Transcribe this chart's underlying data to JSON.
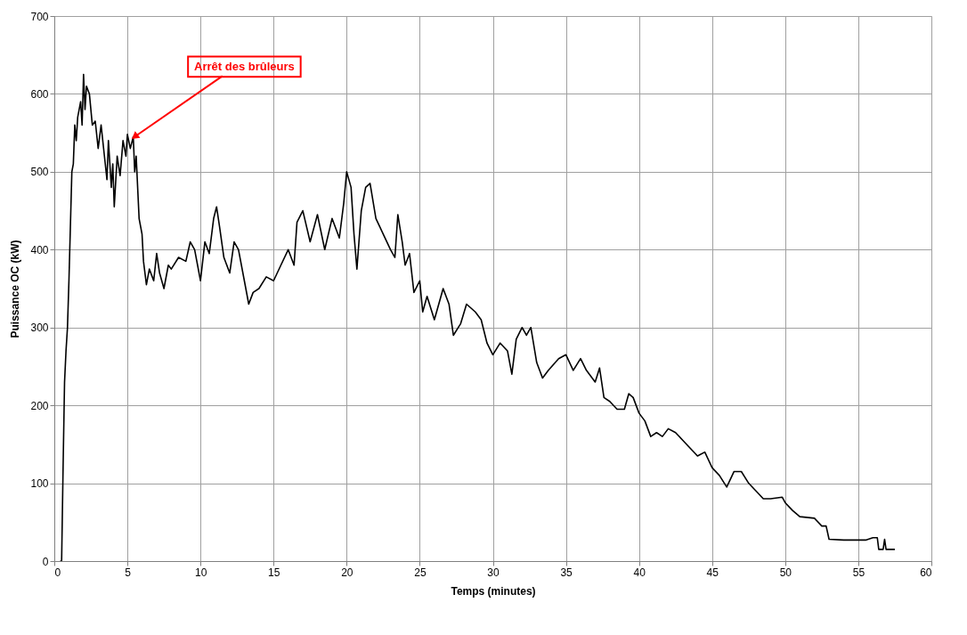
{
  "chart_data": {
    "type": "line",
    "xlabel": "Temps (minutes)",
    "ylabel": "Puissance OC (kW)",
    "xlim": [
      0,
      60
    ],
    "xticks": [
      0,
      5,
      10,
      15,
      20,
      25,
      30,
      35,
      40,
      45,
      50,
      55,
      60
    ],
    "ylim": [
      0,
      700
    ],
    "yticks": [
      0,
      100,
      200,
      300,
      400,
      500,
      600,
      700
    ],
    "grid": true,
    "marker": "none",
    "line_style": "solid",
    "annotations": [
      {
        "text": "Arrêt des brûleurs",
        "x": 5.5,
        "y": 545
      }
    ],
    "series": [
      {
        "color": "#000000",
        "x": [
          0.4,
          0.5,
          0.6,
          0.7,
          0.8,
          0.9,
          1.0,
          1.1,
          1.2,
          1.3,
          1.4,
          1.5,
          1.6,
          1.8,
          1.9,
          2.0,
          2.1,
          2.2,
          2.4,
          2.6,
          2.8,
          3.0,
          3.2,
          3.4,
          3.6,
          3.7,
          3.9,
          4.0,
          4.1,
          4.3,
          4.5,
          4.7,
          4.9,
          5.0,
          5.2,
          5.4,
          5.5,
          5.6,
          5.8,
          6.0,
          6.1,
          6.3,
          6.5,
          6.8,
          7.0,
          7.2,
          7.5,
          7.8,
          8.0,
          8.5,
          9.0,
          9.3,
          9.6,
          10.0,
          10.3,
          10.6,
          10.9,
          11.1,
          11.3,
          11.6,
          12.0,
          12.3,
          12.6,
          13.0,
          13.3,
          13.6,
          14.0,
          14.5,
          15.0,
          15.5,
          16.0,
          16.4,
          16.6,
          17.0,
          17.5,
          18.0,
          18.5,
          19.0,
          19.5,
          19.8,
          20.0,
          20.3,
          20.5,
          20.7,
          21.0,
          21.3,
          21.6,
          22.0,
          22.5,
          23.0,
          23.3,
          23.5,
          23.8,
          24.0,
          24.3,
          24.6,
          25.0,
          25.2,
          25.5,
          26.0,
          26.3,
          26.6,
          27.0,
          27.3,
          27.8,
          28.2,
          28.8,
          29.2,
          29.6,
          30.0,
          30.5,
          31.0,
          31.3,
          31.6,
          32.0,
          32.3,
          32.6,
          33.0,
          33.4,
          33.8,
          34.5,
          35.0,
          35.5,
          36.0,
          36.4,
          37.0,
          37.3,
          37.6,
          38.0,
          38.5,
          39.0,
          39.3,
          39.6,
          40.0,
          40.4,
          40.8,
          41.2,
          41.6,
          42.0,
          42.5,
          43.0,
          43.5,
          44.0,
          44.5,
          45.0,
          45.5,
          46.0,
          46.5,
          47.0,
          47.5,
          48.0,
          48.5,
          49.0,
          49.8,
          50.0,
          50.5,
          51.0,
          52.0,
          52.5,
          52.8,
          53.0,
          54.0,
          55.0,
          55.5,
          56.0,
          56.3,
          56.4,
          56.7,
          56.8,
          56.9,
          57.5
        ],
        "values": [
          0,
          0,
          120,
          230,
          270,
          300,
          360,
          430,
          500,
          510,
          560,
          540,
          570,
          590,
          560,
          625,
          580,
          610,
          600,
          560,
          565,
          530,
          560,
          525,
          490,
          540,
          480,
          510,
          455,
          520,
          495,
          540,
          520,
          548,
          530,
          545,
          500,
          520,
          440,
          420,
          385,
          355,
          375,
          360,
          395,
          370,
          350,
          380,
          375,
          390,
          385,
          410,
          400,
          360,
          410,
          395,
          440,
          455,
          430,
          390,
          370,
          410,
          400,
          360,
          330,
          345,
          350,
          365,
          360,
          380,
          400,
          380,
          435,
          450,
          410,
          445,
          400,
          440,
          415,
          460,
          500,
          480,
          420,
          375,
          450,
          480,
          485,
          440,
          420,
          400,
          390,
          445,
          410,
          380,
          395,
          345,
          360,
          320,
          340,
          310,
          330,
          350,
          330,
          290,
          305,
          330,
          320,
          310,
          280,
          265,
          280,
          270,
          240,
          285,
          300,
          290,
          300,
          255,
          235,
          245,
          260,
          265,
          245,
          260,
          245,
          230,
          248,
          210,
          205,
          195,
          195,
          215,
          210,
          190,
          180,
          160,
          165,
          160,
          170,
          165,
          155,
          145,
          135,
          140,
          120,
          110,
          95,
          115,
          115,
          100,
          90,
          80,
          80,
          82,
          75,
          65,
          57,
          55,
          45,
          45,
          28,
          27,
          27,
          27,
          30,
          30,
          15,
          15,
          28,
          15,
          15
        ]
      }
    ]
  }
}
